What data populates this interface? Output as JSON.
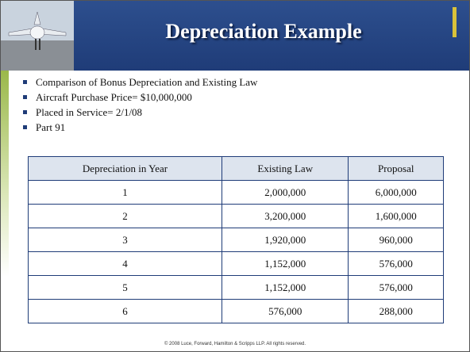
{
  "header": {
    "title": "Depreciation Example"
  },
  "bullets": [
    "Comparison of Bonus Depreciation and Existing Law",
    "Aircraft Purchase Price= $10,000,000",
    "Placed in Service= 2/1/08",
    "Part 91"
  ],
  "table": {
    "header": [
      "Depreciation in Year",
      "Existing Law",
      "Proposal"
    ],
    "rows": [
      [
        "1",
        "2,000,000",
        "6,000,000"
      ],
      [
        "2",
        "3,200,000",
        "1,600,000"
      ],
      [
        "3",
        "1,920,000",
        "960,000"
      ],
      [
        "4",
        "1,152,000",
        "576,000"
      ],
      [
        "5",
        "1,152,000",
        "576,000"
      ],
      [
        "6",
        "576,000",
        "288,000"
      ]
    ]
  },
  "footer": "© 2008 Luce, Forward, Hamilton & Scripps LLP. All rights reserved."
}
